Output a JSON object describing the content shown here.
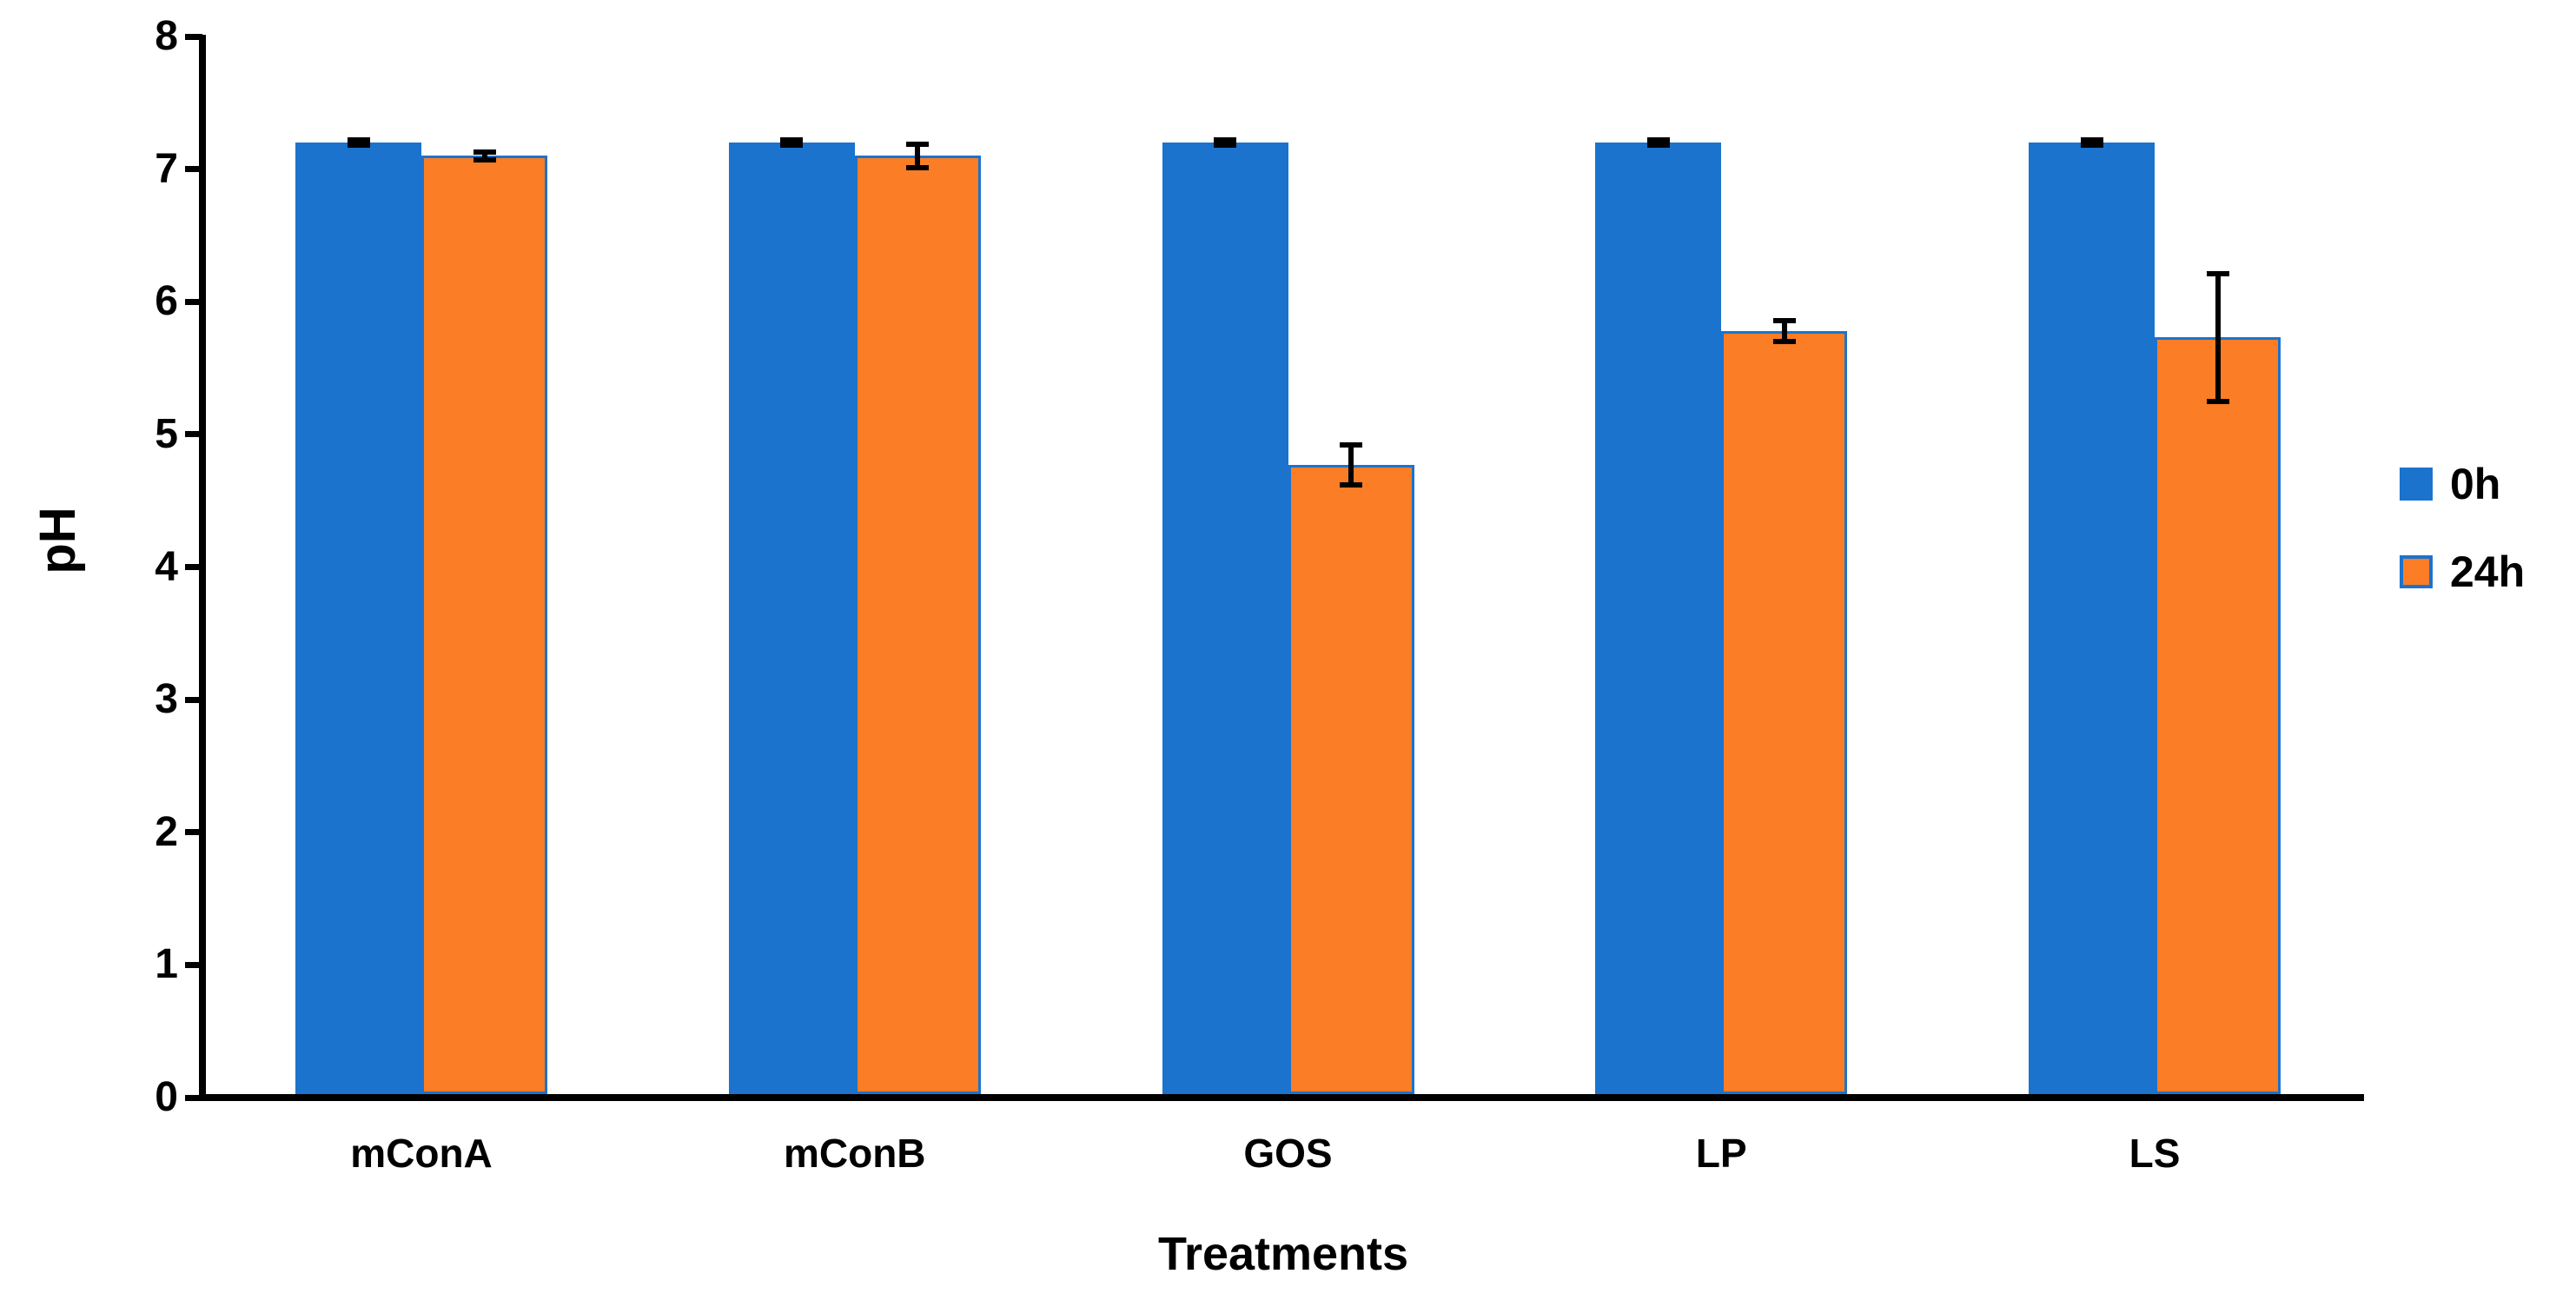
{
  "chart_data": {
    "type": "bar",
    "title": "",
    "xlabel": "Treatments",
    "ylabel": "pH",
    "ylim": [
      0,
      8
    ],
    "yticks": [
      0,
      1,
      2,
      3,
      4,
      5,
      6,
      7,
      8
    ],
    "categories": [
      "mConA",
      "mConB",
      "GOS",
      "LP",
      "LS"
    ],
    "series": [
      {
        "name": "0h",
        "color": "#1b73ce",
        "values": [
          7.2,
          7.2,
          7.2,
          7.2,
          7.2
        ],
        "errors": [
          0.02,
          0.02,
          0.02,
          0.02,
          0.02
        ]
      },
      {
        "name": "24h",
        "color": "#fb7d25",
        "border_color": "#1b73ce",
        "values": [
          7.1,
          7.1,
          4.77,
          5.78,
          5.73
        ],
        "errors": [
          0.03,
          0.09,
          0.15,
          0.08,
          0.48
        ]
      }
    ],
    "error_bar_color": "#000000",
    "axis_color": "#000000",
    "legend_position": "right",
    "grid": false
  }
}
